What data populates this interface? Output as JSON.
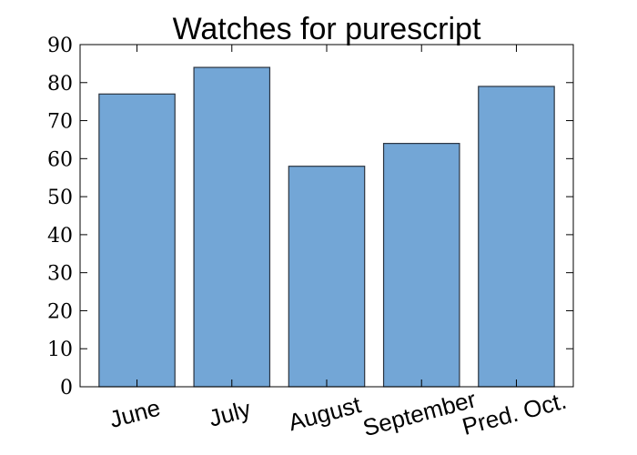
{
  "chart_data": {
    "type": "bar",
    "title": "Watches for purescript",
    "xlabel": "",
    "ylabel": "",
    "categories": [
      "June",
      "July",
      "August",
      "September",
      "Pred. Oct."
    ],
    "values": [
      77,
      84,
      58,
      64,
      79
    ],
    "ylim": [
      0,
      90
    ],
    "yticks": [
      0,
      10,
      20,
      30,
      40,
      50,
      60,
      70,
      80,
      90
    ],
    "grid": false,
    "legend": "none",
    "colors": {
      "bar_fill": "#73a6d6",
      "bar_edge": "#2b3440"
    }
  }
}
